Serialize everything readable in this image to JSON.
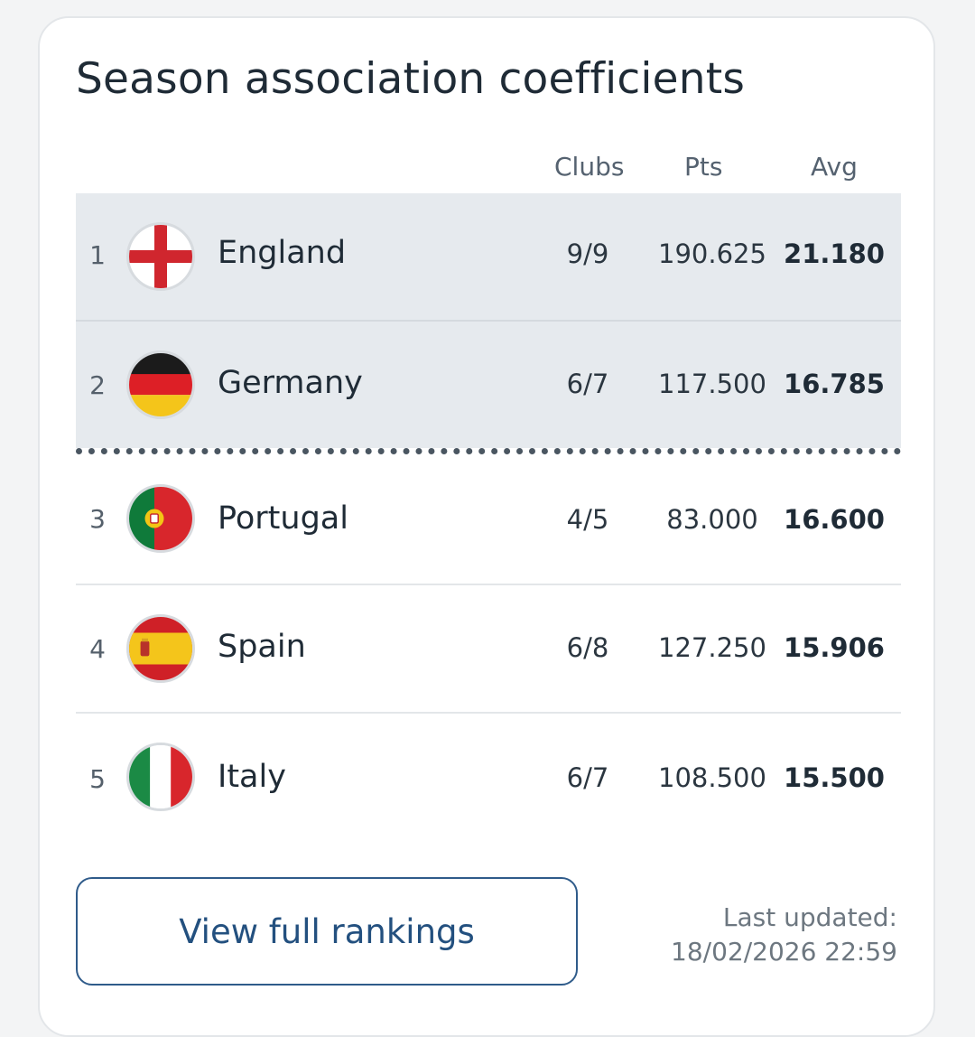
{
  "card": {
    "title": "Season association coefficients"
  },
  "table": {
    "headers": {
      "clubs": "Clubs",
      "pts": "Pts",
      "avg": "Avg"
    },
    "rows": [
      {
        "rank": "1",
        "country": "England",
        "flag": "england-flag-icon",
        "clubs": "9/9",
        "pts": "190.625",
        "avg": "21.180"
      },
      {
        "rank": "2",
        "country": "Germany",
        "flag": "germany-flag-icon",
        "clubs": "6/7",
        "pts": "117.500",
        "avg": "16.785"
      },
      {
        "rank": "3",
        "country": "Portugal",
        "flag": "portugal-flag-icon",
        "clubs": "4/5",
        "pts": "83.000",
        "avg": "16.600"
      },
      {
        "rank": "4",
        "country": "Spain",
        "flag": "spain-flag-icon",
        "clubs": "6/8",
        "pts": "127.250",
        "avg": "15.906"
      },
      {
        "rank": "5",
        "country": "Italy",
        "flag": "italy-flag-icon",
        "clubs": "6/7",
        "pts": "108.500",
        "avg": "15.500"
      }
    ]
  },
  "footer": {
    "button_label": "View full rankings",
    "updated_label": "Last updated:",
    "updated_time": "18/02/2026 22:59"
  },
  "colors": {
    "qualified_row_bg": "#e6eaee",
    "button_accent": "#2f5b8a"
  }
}
